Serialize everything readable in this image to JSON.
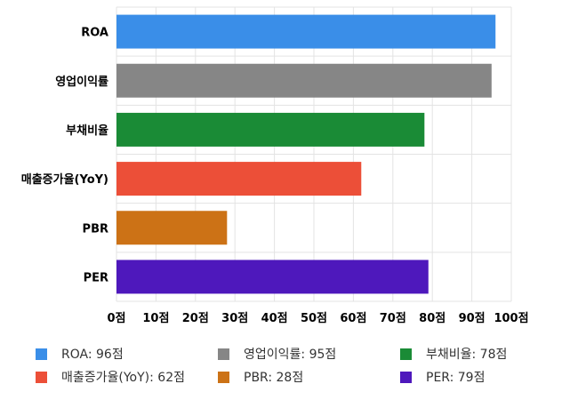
{
  "chart_data": {
    "type": "bar",
    "orientation": "horizontal",
    "categories": [
      "ROA",
      "영업이익률",
      "부채비율",
      "매출증가율(YoY)",
      "PBR",
      "PER"
    ],
    "values": [
      96,
      95,
      78,
      62,
      28,
      79
    ],
    "colors": [
      "#3a8ee8",
      "#868686",
      "#1a8b36",
      "#ec4f38",
      "#cc7216",
      "#4e18bc"
    ],
    "xlim": [
      0,
      100
    ],
    "xticks": [
      0,
      10,
      20,
      30,
      40,
      50,
      60,
      70,
      80,
      90,
      100
    ],
    "xtick_labels": [
      "0점",
      "10점",
      "20점",
      "30점",
      "40점",
      "50점",
      "60점",
      "70점",
      "80점",
      "90점",
      "100점"
    ],
    "grid": true,
    "legend_position": "bottom",
    "legend": [
      {
        "label": "ROA: 96점",
        "color": "#3a8ee8"
      },
      {
        "label": "영업이익률: 95점",
        "color": "#868686"
      },
      {
        "label": "부채비율: 78점",
        "color": "#1a8b36"
      },
      {
        "label": "매출증가율(YoY): 62점",
        "color": "#ec4f38"
      },
      {
        "label": "PBR: 28점",
        "color": "#cc7216"
      },
      {
        "label": "PER: 79점",
        "color": "#4e18bc"
      }
    ]
  }
}
